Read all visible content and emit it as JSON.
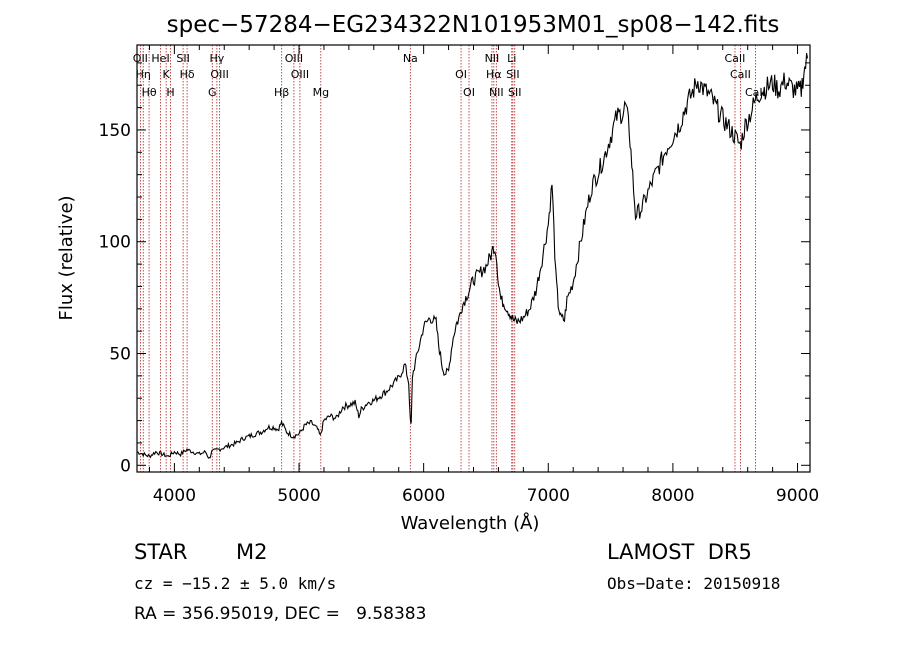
{
  "chart_data": {
    "type": "line",
    "title": "spec−57284−EG234322N101953M01_sp08−142.fits",
    "xlabel": "Wavelength (Å)",
    "ylabel": "Flux (relative)",
    "xlim": [
      3700,
      9100
    ],
    "ylim": [
      -3,
      188
    ],
    "x_ticks": [
      4000,
      5000,
      6000,
      7000,
      8000,
      9000
    ],
    "y_ticks": [
      0,
      50,
      100,
      150
    ],
    "grid": false,
    "line_color": "#000000",
    "marker_line_color": "#b02020",
    "series": [
      {
        "x": [
          3700,
          3750,
          3800,
          3850,
          3900,
          3950,
          4000,
          4050,
          4100,
          4150,
          4200,
          4250,
          4280,
          4300,
          4350,
          4400,
          4450,
          4500,
          4550,
          4600,
          4650,
          4700,
          4750,
          4800,
          4830,
          4860,
          4900,
          4950,
          5000,
          5050,
          5100,
          5150,
          5170,
          5200,
          5250,
          5300,
          5350,
          5400,
          5450,
          5480,
          5500,
          5550,
          5600,
          5650,
          5700,
          5750,
          5800,
          5850,
          5880,
          5893,
          5900,
          5910,
          5950,
          6000,
          6050,
          6100,
          6120,
          6150,
          6170,
          6200,
          6230,
          6260,
          6280,
          6300,
          6330,
          6370,
          6400,
          6450,
          6500,
          6540,
          6563,
          6580,
          6600,
          6620,
          6650,
          6680,
          6700,
          6720,
          6750,
          6800,
          6850,
          6900,
          6950,
          7000,
          7030,
          7060,
          7080,
          7100,
          7130,
          7150,
          7200,
          7250,
          7300,
          7350,
          7400,
          7450,
          7500,
          7550,
          7600,
          7620,
          7650,
          7670,
          7700,
          7750,
          7800,
          7850,
          7900,
          7950,
          8000,
          8050,
          8100,
          8150,
          8200,
          8250,
          8300,
          8350,
          8400,
          8450,
          8500,
          8540,
          8580,
          8620,
          8660,
          8700,
          8750,
          8800,
          8850,
          8900,
          8950,
          9000,
          9030,
          9050,
          9080
        ],
        "y": [
          6,
          5,
          4,
          6,
          5,
          4,
          6,
          5,
          7,
          6,
          5,
          6,
          3,
          6,
          7,
          8,
          9,
          10,
          12,
          13,
          14,
          15,
          17,
          17,
          16,
          19,
          15,
          13,
          14,
          18,
          19,
          16,
          13,
          20,
          22,
          21,
          26,
          27,
          28,
          22,
          25,
          28,
          29,
          31,
          33,
          36,
          39,
          45,
          37,
          20,
          18,
          40,
          50,
          62,
          66,
          64,
          54,
          44,
          41,
          42,
          55,
          63,
          65,
          70,
          74,
          79,
          83,
          86,
          89,
          94,
          98,
          96,
          82,
          74,
          72,
          69,
          67,
          65,
          64,
          66,
          70,
          78,
          92,
          108,
          126,
          85,
          72,
          66,
          65,
          74,
          82,
          97,
          112,
          125,
          131,
          138,
          147,
          156,
          158,
          161,
          150,
          135,
          112,
          115,
          122,
          129,
          135,
          142,
          147,
          152,
          160,
          166,
          172,
          168,
          165,
          160,
          155,
          151,
          147,
          143,
          152,
          157,
          163,
          167,
          169,
          171,
          168,
          172,
          169,
          167,
          168,
          176,
          182
        ]
      }
    ],
    "spectral_lines": [
      {
        "wavelength": 3727,
        "label": "OII"
      },
      {
        "wavelength": 3750,
        "label": "Hη"
      },
      {
        "wavelength": 3797,
        "label": "Hθ"
      },
      {
        "wavelength": 3889,
        "label": "HeI"
      },
      {
        "wavelength": 3934,
        "label": "K"
      },
      {
        "wavelength": 3969,
        "label": "H"
      },
      {
        "wavelength": 4070,
        "label": "SII"
      },
      {
        "wavelength": 4102,
        "label": "Hδ"
      },
      {
        "wavelength": 4304,
        "label": "G"
      },
      {
        "wavelength": 4341,
        "label": "Hγ"
      },
      {
        "wavelength": 4363,
        "label": "OIII"
      },
      {
        "wavelength": 4861,
        "label": "Hβ"
      },
      {
        "wavelength": 4959,
        "label": "OIII"
      },
      {
        "wavelength": 5007,
        "label": "OIII"
      },
      {
        "wavelength": 5175,
        "label": "Mg"
      },
      {
        "wavelength": 5893,
        "label": "Na"
      },
      {
        "wavelength": 6300,
        "label": "OI"
      },
      {
        "wavelength": 6364,
        "label": "OI"
      },
      {
        "wavelength": 6548,
        "label": "NII"
      },
      {
        "wavelength": 6563,
        "label": "Hα"
      },
      {
        "wavelength": 6583,
        "label": "NII"
      },
      {
        "wavelength": 6707,
        "label": "Li"
      },
      {
        "wavelength": 6716,
        "label": "SII"
      },
      {
        "wavelength": 6731,
        "label": "SII"
      },
      {
        "wavelength": 8498,
        "label": "CaII"
      },
      {
        "wavelength": 8542,
        "label": "CaII"
      },
      {
        "wavelength": 8662,
        "label": "CaII"
      }
    ]
  },
  "info": {
    "object_class": "STAR",
    "subclass": "M2",
    "survey": "LAMOST  DR5",
    "redshift": "cz = −15.2 ± 5.0 km/s",
    "obs_date": "Obs−Date: 20150918",
    "coords": "RA = 356.95019, DEC =   9.58383"
  }
}
